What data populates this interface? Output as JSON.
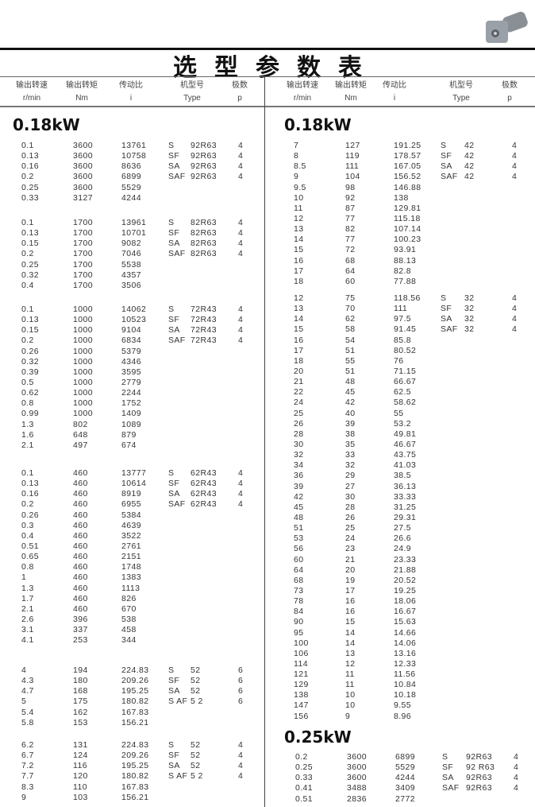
{
  "title": "选型参数表",
  "header": [
    {
      "cn": "输出转速",
      "unit": "r/min"
    },
    {
      "cn": "输出转矩",
      "unit": "Nm"
    },
    {
      "cn": "传动比",
      "unit": "i"
    },
    {
      "cn": "机型号",
      "unit": "Type"
    },
    {
      "cn": "极数",
      "unit": "p"
    }
  ],
  "left": {
    "section": "0.18kW",
    "blocks": [
      [
        [
          "0.1",
          "3600",
          "13761",
          "S",
          "92R63",
          "4"
        ],
        [
          "0.13",
          "3600",
          "10758",
          "SF",
          "92R63",
          "4"
        ],
        [
          "0.16",
          "3600",
          "8636",
          "SA",
          "92R63",
          "4"
        ],
        [
          "0.2",
          "3600",
          "6899",
          "SAF",
          "92R63",
          "4"
        ],
        [
          "0.25",
          "3600",
          "5529",
          "",
          "",
          ""
        ],
        [
          "0.33",
          "3127",
          "4244",
          "",
          "",
          ""
        ]
      ],
      [
        [
          "0.1",
          "1700",
          "13961",
          "S",
          "82R63",
          "4"
        ],
        [
          "0.13",
          "1700",
          "10701",
          "SF",
          "82R63",
          "4"
        ],
        [
          "0.15",
          "1700",
          "9082",
          "SA",
          "82R63",
          "4"
        ],
        [
          "0.2",
          "1700",
          "7046",
          "SAF",
          "82R63",
          "4"
        ],
        [
          "0.25",
          "1700",
          "5538",
          "",
          "",
          ""
        ],
        [
          "0.32",
          "1700",
          "4357",
          "",
          "",
          ""
        ],
        [
          "0.4",
          "1700",
          "3506",
          "",
          "",
          ""
        ]
      ],
      [
        [
          "0.1",
          "1000",
          "14062",
          "S",
          "72R43",
          "4"
        ],
        [
          "0.13",
          "1000",
          "10523",
          "SF",
          "72R43",
          "4"
        ],
        [
          "0.15",
          "1000",
          "9104",
          "SA",
          "72R43",
          "4"
        ],
        [
          "0.2",
          "1000",
          "6834",
          "SAF",
          "72R43",
          "4"
        ],
        [
          "0.26",
          "1000",
          "5379",
          "",
          "",
          ""
        ],
        [
          "0.32",
          "1000",
          "4346",
          "",
          "",
          ""
        ],
        [
          "0.39",
          "1000",
          "3595",
          "",
          "",
          ""
        ],
        [
          "0.5",
          "1000",
          "2779",
          "",
          "",
          ""
        ],
        [
          "0.62",
          "1000",
          "2244",
          "",
          "",
          ""
        ],
        [
          "0.8",
          "1000",
          "1752",
          "",
          "",
          ""
        ],
        [
          "0.99",
          "1000",
          "1409",
          "",
          "",
          ""
        ],
        [
          "1.3",
          "802",
          "1089",
          "",
          "",
          ""
        ],
        [
          "1.6",
          "648",
          "879",
          "",
          "",
          ""
        ],
        [
          "2.1",
          "497",
          "674",
          "",
          "",
          ""
        ]
      ],
      [
        [
          "0.1",
          "460",
          "13777",
          "S",
          "62R43",
          "4"
        ],
        [
          "0.13",
          "460",
          "10614",
          "SF",
          "62R43",
          "4"
        ],
        [
          "0.16",
          "460",
          "8919",
          "SA",
          "62R43",
          "4"
        ],
        [
          "0.2",
          "460",
          "6955",
          "SAF",
          "62R43",
          "4"
        ],
        [
          "0.26",
          "460",
          "5384",
          "",
          "",
          ""
        ],
        [
          "0.3",
          "460",
          "4639",
          "",
          "",
          ""
        ],
        [
          "0.4",
          "460",
          "3522",
          "",
          "",
          ""
        ],
        [
          "0.51",
          "460",
          "2761",
          "",
          "",
          ""
        ],
        [
          "0.65",
          "460",
          "2151",
          "",
          "",
          ""
        ],
        [
          "0.8",
          "460",
          "1748",
          "",
          "",
          ""
        ],
        [
          "1",
          "460",
          "1383",
          "",
          "",
          ""
        ],
        [
          "1.3",
          "460",
          "1113",
          "",
          "",
          ""
        ],
        [
          "1.7",
          "460",
          "826",
          "",
          "",
          ""
        ],
        [
          "2.1",
          "460",
          "670",
          "",
          "",
          ""
        ],
        [
          "2.6",
          "396",
          "538",
          "",
          "",
          ""
        ],
        [
          "3.1",
          "337",
          "458",
          "",
          "",
          ""
        ],
        [
          "4.1",
          "253",
          "344",
          "",
          "",
          ""
        ]
      ],
      [
        [
          "4",
          "194",
          "224.83",
          "S",
          "52",
          "6"
        ],
        [
          "4.3",
          "180",
          "209.26",
          "SF",
          "52",
          "6"
        ],
        [
          "4.7",
          "168",
          "195.25",
          "SA",
          "52",
          "6"
        ],
        [
          "5",
          "175",
          "180.82",
          "S AF",
          "5 2",
          "6"
        ],
        [
          "5.4",
          "162",
          "167.83",
          "",
          "",
          ""
        ],
        [
          "5.8",
          "153",
          "156.21",
          "",
          "",
          ""
        ]
      ],
      [
        [
          "6.2",
          "131",
          "224.83",
          "S",
          "52",
          "4"
        ],
        [
          "6.7",
          "124",
          "209.26",
          "SF",
          "52",
          "4"
        ],
        [
          "7.2",
          "116",
          "195.25",
          "SA",
          "52",
          "4"
        ],
        [
          "7.7",
          "120",
          "180.82",
          "S AF",
          "5 2",
          "4"
        ],
        [
          "8.3",
          "110",
          "167.83",
          "",
          "",
          ""
        ],
        [
          "9",
          "103",
          "156.21",
          "",
          "",
          ""
        ]
      ]
    ]
  },
  "right": {
    "section": "0.18kW",
    "blocks": [
      [
        [
          "7",
          "127",
          "191.25",
          "S",
          "42",
          "4"
        ],
        [
          "8",
          "119",
          "178.57",
          "SF",
          "42",
          "4"
        ],
        [
          "8.5",
          "111",
          "167.05",
          "SA",
          "42",
          "4"
        ],
        [
          "9",
          "104",
          "156.52",
          "SAF",
          "42",
          "4"
        ],
        [
          "9.5",
          "98",
          "146.88",
          "",
          "",
          ""
        ],
        [
          "10",
          "92",
          "138",
          "",
          "",
          ""
        ],
        [
          "11",
          "87",
          "129.81",
          "",
          "",
          ""
        ],
        [
          "12",
          "77",
          "115.18",
          "",
          "",
          ""
        ],
        [
          "13",
          "82",
          "107.14",
          "",
          "",
          ""
        ],
        [
          "14",
          "77",
          "100.23",
          "",
          "",
          ""
        ],
        [
          "15",
          "72",
          "93.91",
          "",
          "",
          ""
        ],
        [
          "16",
          "68",
          "88.13",
          "",
          "",
          ""
        ],
        [
          "17",
          "64",
          "82.8",
          "",
          "",
          ""
        ],
        [
          "18",
          "60",
          "77.88",
          "",
          "",
          ""
        ]
      ],
      [
        [
          "12",
          "75",
          "118.56",
          "S",
          "32",
          "4"
        ],
        [
          "13",
          "70",
          "111",
          "SF",
          "32",
          "4"
        ],
        [
          "14",
          "62",
          "97.5",
          "SA",
          "32",
          "4"
        ],
        [
          "15",
          "58",
          "91.45",
          "SAF",
          "32",
          "4"
        ],
        [
          "16",
          "54",
          "85.8",
          "",
          "",
          ""
        ],
        [
          "17",
          "51",
          "80.52",
          "",
          "",
          ""
        ],
        [
          "18",
          "55",
          "76",
          "",
          "",
          ""
        ],
        [
          "20",
          "51",
          "71.15",
          "",
          "",
          ""
        ],
        [
          "21",
          "48",
          "66.67",
          "",
          "",
          ""
        ],
        [
          "22",
          "45",
          "62.5",
          "",
          "",
          ""
        ],
        [
          "24",
          "42",
          "58.62",
          "",
          "",
          ""
        ],
        [
          "25",
          "40",
          "55",
          "",
          "",
          ""
        ],
        [
          "26",
          "39",
          "53.2",
          "",
          "",
          ""
        ],
        [
          "28",
          "38",
          "49.81",
          "",
          "",
          ""
        ],
        [
          "30",
          "35",
          "46.67",
          "",
          "",
          ""
        ],
        [
          "32",
          "33",
          "43.75",
          "",
          "",
          ""
        ],
        [
          "34",
          "32",
          "41.03",
          "",
          "",
          ""
        ],
        [
          "36",
          "29",
          "38.5",
          "",
          "",
          ""
        ],
        [
          "39",
          "27",
          "36.13",
          "",
          "",
          ""
        ],
        [
          "42",
          "30",
          "33.33",
          "",
          "",
          ""
        ],
        [
          "45",
          "28",
          "31.25",
          "",
          "",
          ""
        ],
        [
          "48",
          "26",
          "29.31",
          "",
          "",
          ""
        ],
        [
          "51",
          "25",
          "27.5",
          "",
          "",
          ""
        ],
        [
          "53",
          "24",
          "26.6",
          "",
          "",
          ""
        ],
        [
          "56",
          "23",
          "24.9",
          "",
          "",
          ""
        ],
        [
          "60",
          "21",
          "23.33",
          "",
          "",
          ""
        ],
        [
          "64",
          "20",
          "21.88",
          "",
          "",
          ""
        ],
        [
          "68",
          "19",
          "20.52",
          "",
          "",
          ""
        ],
        [
          "73",
          "17",
          "19.25",
          "",
          "",
          ""
        ],
        [
          "78",
          "16",
          "18.06",
          "",
          "",
          ""
        ],
        [
          "84",
          "16",
          "16.67",
          "",
          "",
          ""
        ],
        [
          "90",
          "15",
          "15.63",
          "",
          "",
          ""
        ],
        [
          "95",
          "14",
          "14.66",
          "",
          "",
          ""
        ],
        [
          "100",
          "14",
          "14.06",
          "",
          "",
          ""
        ],
        [
          "106",
          "13",
          "13.16",
          "",
          "",
          ""
        ],
        [
          "114",
          "12",
          "12.33",
          "",
          "",
          ""
        ],
        [
          "121",
          "11",
          "11.56",
          "",
          "",
          ""
        ],
        [
          "129",
          "11",
          "10.84",
          "",
          "",
          ""
        ],
        [
          "138",
          "10",
          "10.18",
          "",
          "",
          ""
        ],
        [
          "147",
          "10",
          "9.55",
          "",
          "",
          ""
        ],
        [
          "156",
          "9",
          "8.96",
          "",
          "",
          ""
        ]
      ]
    ],
    "section2": "0.25kW",
    "blocks2": [
      [
        [
          "0.2",
          "3600",
          "6899",
          "S",
          "92R63",
          "4"
        ],
        [
          "0.25",
          "3600",
          "5529",
          "SF",
          "92 R63",
          "4"
        ],
        [
          "0.33",
          "3600",
          "4244",
          "SA",
          "92R63",
          "4"
        ],
        [
          "0.41",
          "3488",
          "3409",
          "SAF",
          "92R63",
          "4"
        ],
        [
          "0.51",
          "2836",
          "2772",
          "",
          "",
          ""
        ]
      ]
    ]
  },
  "product_image": "gear-motor-photo"
}
